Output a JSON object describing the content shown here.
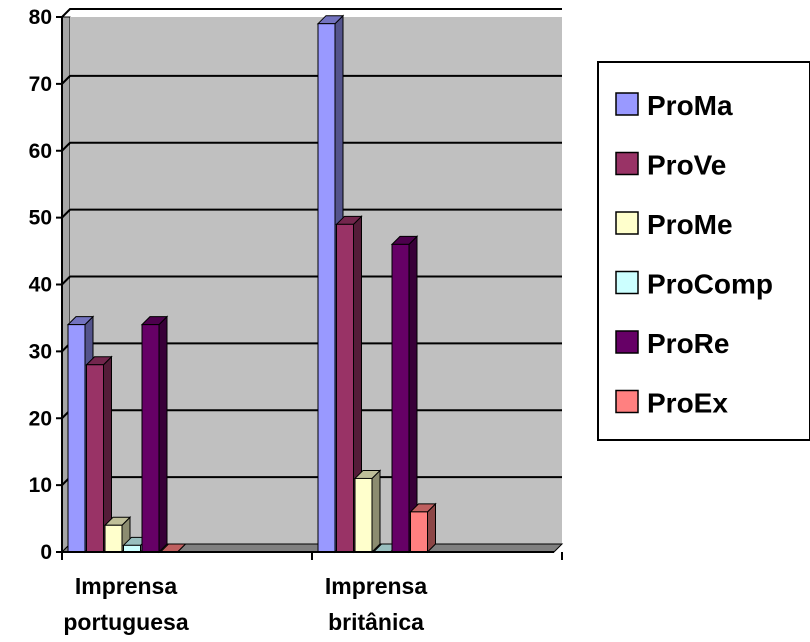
{
  "chart_data": {
    "type": "bar",
    "categories": [
      "Imprensa portuguesa",
      "Imprensa britânica"
    ],
    "category_lines": [
      [
        "Imprensa",
        "portuguesa"
      ],
      [
        "Imprensa",
        "britânica"
      ]
    ],
    "series": [
      {
        "name": "ProMa",
        "values": [
          34,
          79
        ],
        "color": "#9999ff"
      },
      {
        "name": "ProVe",
        "values": [
          28,
          49
        ],
        "color": "#993366"
      },
      {
        "name": "ProMe",
        "values": [
          4,
          11
        ],
        "color": "#ffffcc"
      },
      {
        "name": "ProComp",
        "values": [
          1,
          0
        ],
        "color": "#ccffff"
      },
      {
        "name": "ProRe",
        "values": [
          34,
          46
        ],
        "color": "#660066"
      },
      {
        "name": "ProEx",
        "values": [
          0,
          6
        ],
        "color": "#ff8080"
      }
    ],
    "yticks": [
      0,
      10,
      20,
      30,
      40,
      50,
      60,
      70,
      80
    ],
    "ylim": [
      0,
      80
    ],
    "title": "",
    "xlabel": "",
    "ylabel": "",
    "grid": true,
    "legend": "right",
    "plot_background": "#c0c0c0"
  }
}
